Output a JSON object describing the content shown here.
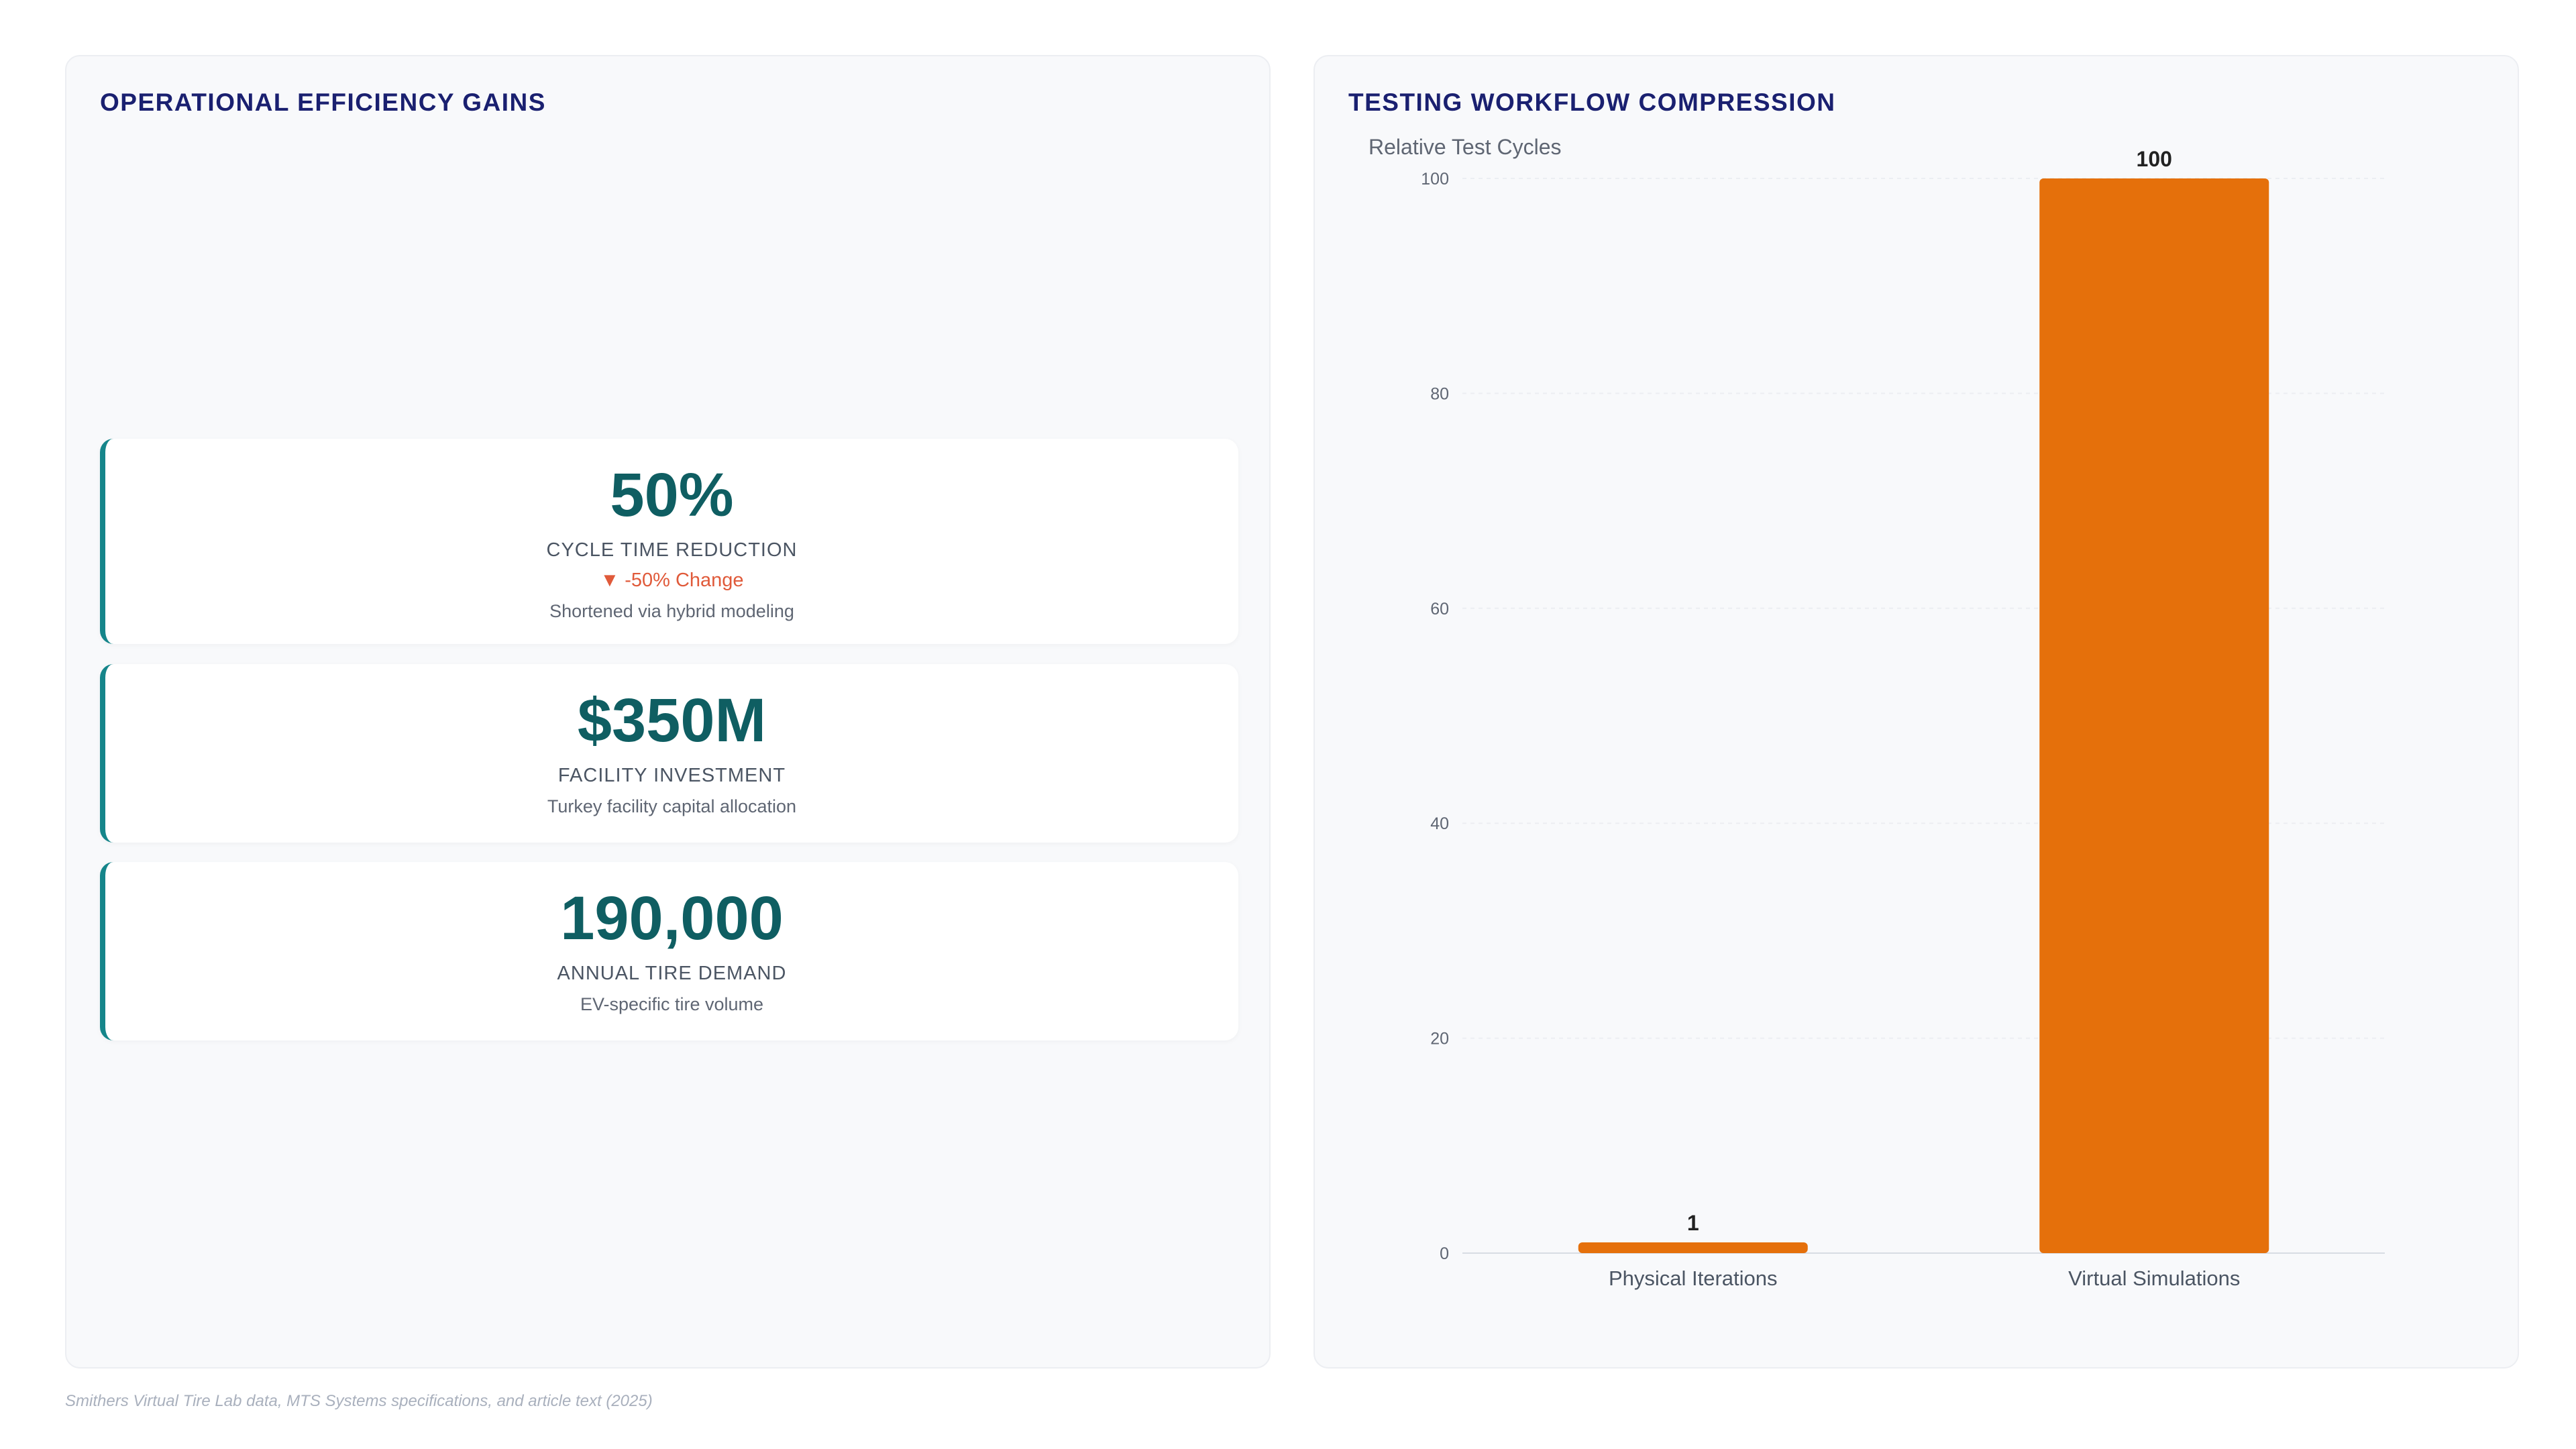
{
  "left_panel": {
    "title": "OPERATIONAL EFFICIENCY GAINS",
    "kpis": [
      {
        "value": "50%",
        "label": "CYCLE TIME REDUCTION",
        "change": "▼ -50% Change",
        "description": "Shortened via hybrid modeling"
      },
      {
        "value": "$350M",
        "label": "FACILITY INVESTMENT",
        "description": "Turkey facility capital allocation"
      },
      {
        "value": "190,000",
        "label": "ANNUAL TIRE DEMAND",
        "description": "EV-specific tire volume"
      }
    ]
  },
  "right_panel": {
    "title": "TESTING WORKFLOW COMPRESSION"
  },
  "chart_data": {
    "type": "bar",
    "title": "TESTING WORKFLOW COMPRESSION",
    "xlabel": "",
    "ylabel": "Relative Test Cycles",
    "categories": [
      "Physical Iterations",
      "Virtual Simulations"
    ],
    "values": [
      1,
      100
    ],
    "data_labels": [
      "1",
      "100"
    ],
    "ylim": [
      0,
      100
    ],
    "yticks": [
      0,
      20,
      40,
      60,
      80,
      100
    ],
    "grid": true,
    "bar_color": "#e5700b"
  },
  "footer": {
    "source": "Smithers Virtual Tire Lab data, MTS Systems specifications, and article text (2025)"
  },
  "colors": {
    "title": "#1a2070",
    "kpi_value": "#0f5e62",
    "kpi_accent": "#15858a",
    "change_negative": "#e05a3a",
    "bar": "#e5700b"
  }
}
